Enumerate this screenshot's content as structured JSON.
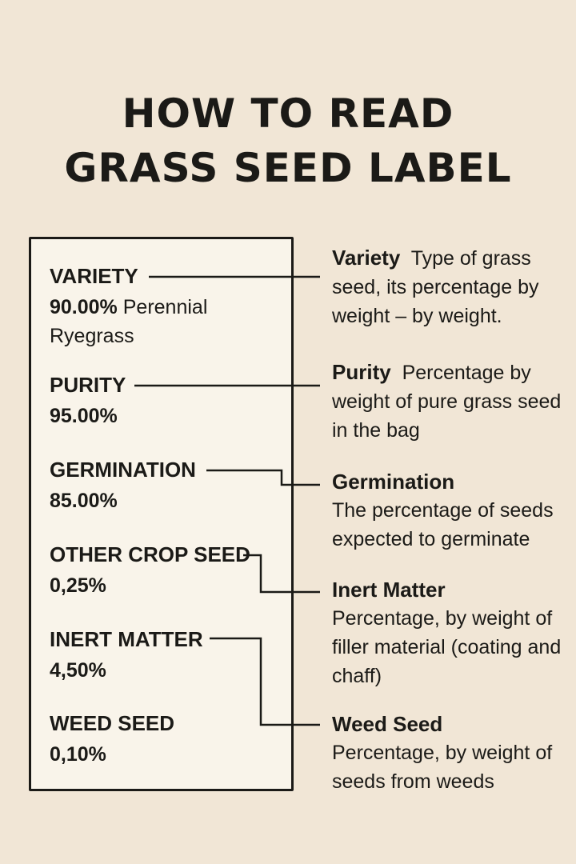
{
  "title": {
    "line1": "HOW TO READ",
    "line2": "GRASS SEED LABEL"
  },
  "fields": [
    {
      "name": "VARIETY",
      "value": "90.00%",
      "value_extra": " Perennial Ryegrass"
    },
    {
      "name": "PURITY",
      "value": "95.00%"
    },
    {
      "name": "GERMINATION",
      "value": "85.00%"
    },
    {
      "name": "OTHER CROP SEED",
      "value": "0,25%"
    },
    {
      "name": "INERT MATTER",
      "value": "4,50%"
    },
    {
      "name": "WEED SEED",
      "value": "0,10%"
    }
  ],
  "descriptions": [
    {
      "title": "Variety",
      "text": "  Type of grass seed, its percentage by weight – by weight."
    },
    {
      "title": "Purity",
      "text": "  Percentage by weight of pure grass seed in the bag"
    },
    {
      "title": "Germination",
      "text": "The percentage of seeds expected to germinate"
    },
    {
      "title": "Inert Matter",
      "text": "Percentage, by weight of filler material (coating and chaff)"
    },
    {
      "title": "Weed Seed",
      "text": "Percentage, by weight of seeds from weeds"
    }
  ]
}
